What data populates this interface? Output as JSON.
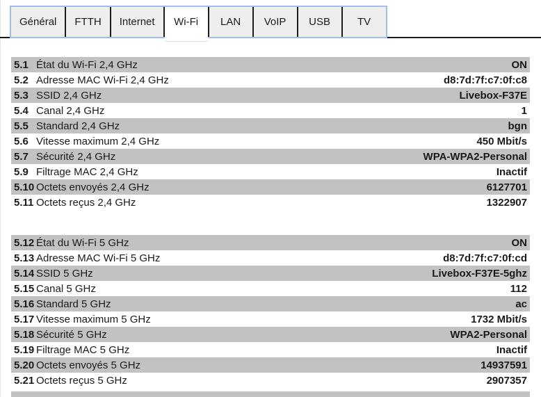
{
  "tabs": [
    {
      "label": "Général",
      "active": false
    },
    {
      "label": "FTTH",
      "active": false
    },
    {
      "label": "Internet",
      "active": false
    },
    {
      "label": "Wi-Fi",
      "active": true
    },
    {
      "label": "LAN",
      "active": false
    },
    {
      "label": "VoIP",
      "active": false
    },
    {
      "label": "USB",
      "active": false
    },
    {
      "label": "TV",
      "active": false
    }
  ],
  "colors": {
    "stripe_gray": "#c2c2c2",
    "tab_border_blue": "#a3bdea",
    "tab_inactive_bg": "#eeeeee",
    "tab_active_bg": "#ffffff",
    "frame_dark": "#1a1a1a"
  },
  "sections": [
    {
      "name": "wifi-2-4ghz",
      "rows": [
        {
          "num": "5.1",
          "label": "État du Wi-Fi 2,4 GHz",
          "value": "ON"
        },
        {
          "num": "5.2",
          "label": "Adresse MAC Wi-Fi 2,4 GHz",
          "value": "d8:7d:7f:c7:0f:c8"
        },
        {
          "num": "5.3",
          "label": "SSID 2,4 GHz",
          "value": "Livebox-F37E"
        },
        {
          "num": "5.4",
          "label": "Canal 2,4 GHz",
          "value": "1"
        },
        {
          "num": "5.5",
          "label": "Standard 2,4 GHz",
          "value": "bgn"
        },
        {
          "num": "5.6",
          "label": "Vitesse maximum 2,4 GHz",
          "value": "450 Mbit/s"
        },
        {
          "num": "5.7",
          "label": "Sécurité 2,4 GHz",
          "value": "WPA-WPA2-Personal"
        },
        {
          "num": "5.9",
          "label": "Filtrage MAC 2,4 GHz",
          "value": "Inactif"
        },
        {
          "num": "5.10",
          "label": "Octets envoyés 2,4 GHz",
          "value": "6127701"
        },
        {
          "num": "5.11",
          "label": "Octets reçus 2,4 GHz",
          "value": "1322907"
        }
      ]
    },
    {
      "name": "wifi-5ghz",
      "rows": [
        {
          "num": "5.12",
          "label": "État du Wi-Fi 5 GHz",
          "value": "ON"
        },
        {
          "num": "5.13",
          "label": "Adresse MAC Wi-Fi 5 GHz",
          "value": "d8:7d:7f:c7:0f:cd"
        },
        {
          "num": "5.14",
          "label": "SSID 5 GHz",
          "value": "Livebox-F37E-5ghz"
        },
        {
          "num": "5.15",
          "label": "Canal 5 GHz",
          "value": "112"
        },
        {
          "num": "5.16",
          "label": "Standard 5 GHz",
          "value": "ac"
        },
        {
          "num": "5.17",
          "label": "Vitesse maximum 5 GHz",
          "value": "1732 Mbit/s"
        },
        {
          "num": "5.18",
          "label": "Sécurité 5 GHz",
          "value": "WPA2-Personal"
        },
        {
          "num": "5.19",
          "label": "Filtrage MAC 5 GHz",
          "value": "Inactif"
        },
        {
          "num": "5.20",
          "label": "Octets envoyés 5 GHz",
          "value": "14937591"
        },
        {
          "num": "5.21",
          "label": "Octets reçus 5 GHz",
          "value": "2907357"
        }
      ]
    }
  ]
}
